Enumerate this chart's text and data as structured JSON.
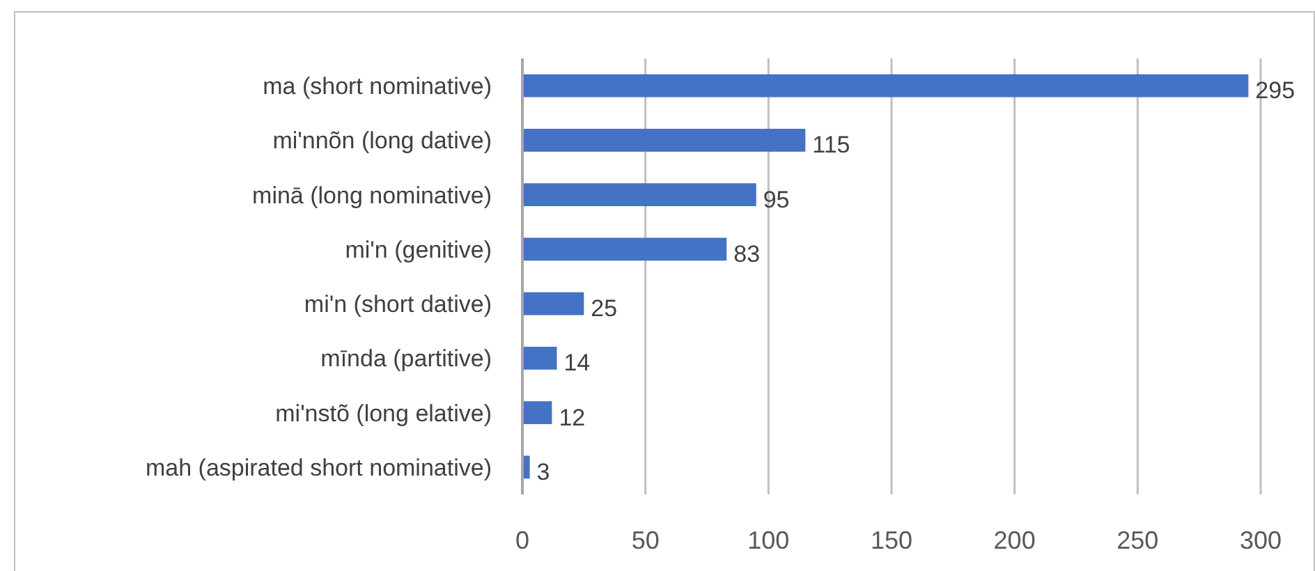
{
  "chart_data": {
    "type": "bar",
    "orientation": "horizontal",
    "categories": [
      "ma (short nominative)",
      "mi'nnõn (long dative)",
      "minā (long nominative)",
      "mi'n (genitive)",
      "mi'n (short dative)",
      "mīnda (partitive)",
      "mi'nstõ (long elative)",
      "mah (aspirated short nominative)"
    ],
    "values": [
      295,
      115,
      95,
      83,
      25,
      14,
      12,
      3
    ],
    "color": "#4472c4",
    "xlim": [
      0,
      300
    ],
    "xticks": [
      0,
      50,
      100,
      150,
      200,
      250,
      300
    ],
    "grid": "x",
    "data_labels": true
  }
}
